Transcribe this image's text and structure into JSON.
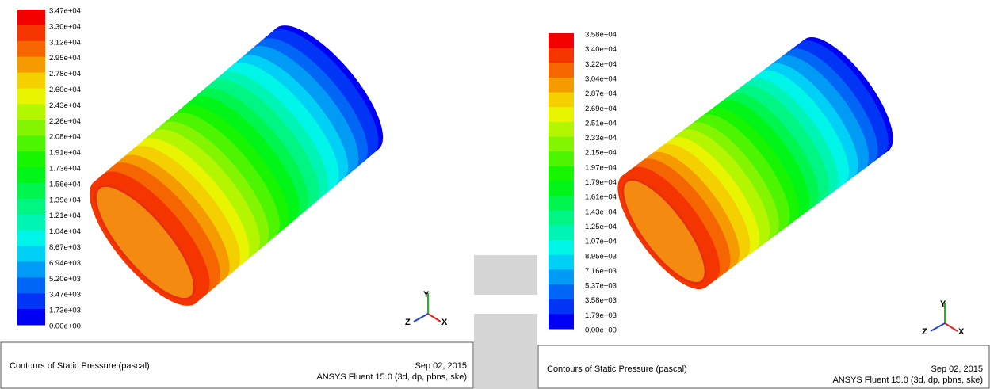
{
  "panels": [
    {
      "legend_labels": [
        "3.47e+04",
        "3.30e+04",
        "3.12e+04",
        "2.95e+04",
        "2.78e+04",
        "2.60e+04",
        "2.43e+04",
        "2.26e+04",
        "2.08e+04",
        "1.91e+04",
        "1.73e+04",
        "1.56e+04",
        "1.39e+04",
        "1.21e+04",
        "1.04e+04",
        "8.67e+03",
        "6.94e+03",
        "5.20e+03",
        "3.47e+03",
        "1.73e+03",
        "0.00e+00"
      ],
      "axes": {
        "x": "X",
        "y": "Y",
        "z": "Z"
      },
      "footer": {
        "title": "Contours of Static Pressure (pascal)",
        "date": "Sep 02, 2015",
        "software": "ANSYS Fluent 15.0 (3d, dp, pbns, ske)"
      }
    },
    {
      "legend_labels": [
        "3.58e+04",
        "3.40e+04",
        "3.22e+04",
        "3.04e+04",
        "2.87e+04",
        "2.69e+04",
        "2.51e+04",
        "2.33e+04",
        "2.15e+04",
        "1.97e+04",
        "1.79e+04",
        "1.61e+04",
        "1.43e+04",
        "1.25e+04",
        "1.07e+04",
        "8.95e+03",
        "7.16e+03",
        "5.37e+03",
        "3.58e+03",
        "1.79e+03",
        "0.00e+00"
      ],
      "axes": {
        "x": "X",
        "y": "Y",
        "z": "Z"
      },
      "footer": {
        "title": "Contours of Static Pressure (pascal)",
        "date": "Sep 02, 2015",
        "software": "ANSYS Fluent 15.0 (3d, dp, pbns, ske)"
      }
    }
  ]
}
